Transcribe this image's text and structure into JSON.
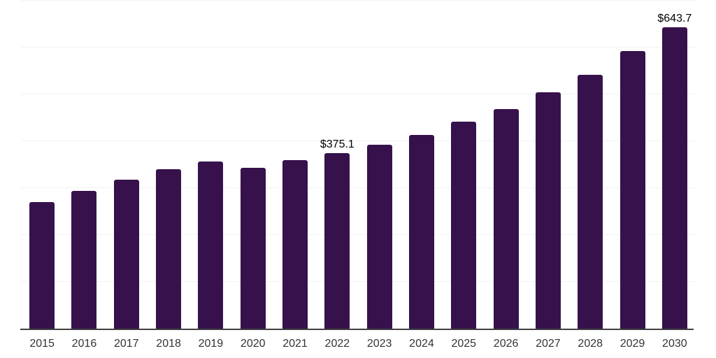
{
  "chart": {
    "background_color": "#ffffff",
    "bar_color": "#36114B",
    "gridline_color": "#f2f2f2",
    "axis_line_color": "#404040",
    "tick_label_color": "#333333",
    "value_label_color": "#000000"
  },
  "chart_data": {
    "type": "bar",
    "title": "",
    "xlabel": "",
    "ylabel": "",
    "categories": [
      "2015",
      "2016",
      "2017",
      "2018",
      "2019",
      "2020",
      "2021",
      "2022",
      "2023",
      "2024",
      "2025",
      "2026",
      "2027",
      "2028",
      "2029",
      "2030"
    ],
    "values": [
      270,
      294,
      318,
      340,
      356,
      344,
      360,
      375.1,
      393,
      414,
      442,
      469,
      505,
      542,
      593,
      643.7
    ],
    "labeled_points": [
      {
        "category": "2022",
        "label": "$375.1"
      },
      {
        "category": "2030",
        "label": "$643.7"
      }
    ],
    "ylim": [
      0,
      700
    ],
    "gridline_step": 100,
    "grid": true,
    "legend": false,
    "y_axis_labels_visible": false
  }
}
